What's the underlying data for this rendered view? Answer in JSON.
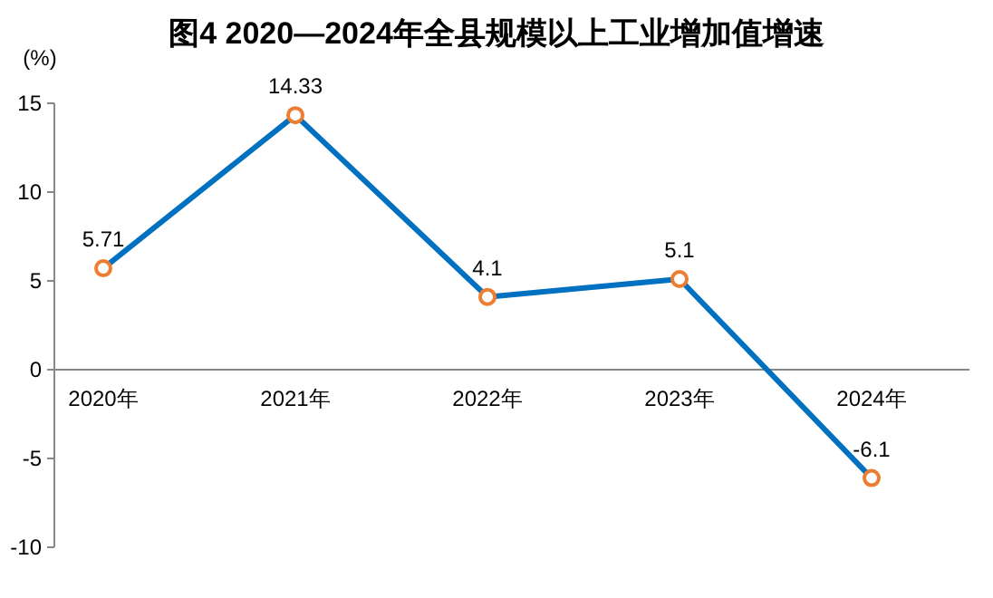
{
  "chart_data": {
    "type": "line",
    "title": "图4  2020—2024年全县规模以上工业增加值增速",
    "ylabel": "(%)",
    "categories": [
      "2020年",
      "2021年",
      "2022年",
      "2023年",
      "2024年"
    ],
    "series": [
      {
        "color": "#0070c0",
        "values": [
          5.71,
          14.33,
          4.1,
          5.1,
          -6.1
        ]
      }
    ],
    "ylim": [
      -10,
      15
    ],
    "yticks": [
      -10,
      -5,
      0,
      5,
      10,
      15
    ],
    "data_labels": true,
    "marker": "circle",
    "line_style": "solid",
    "grid": false
  }
}
